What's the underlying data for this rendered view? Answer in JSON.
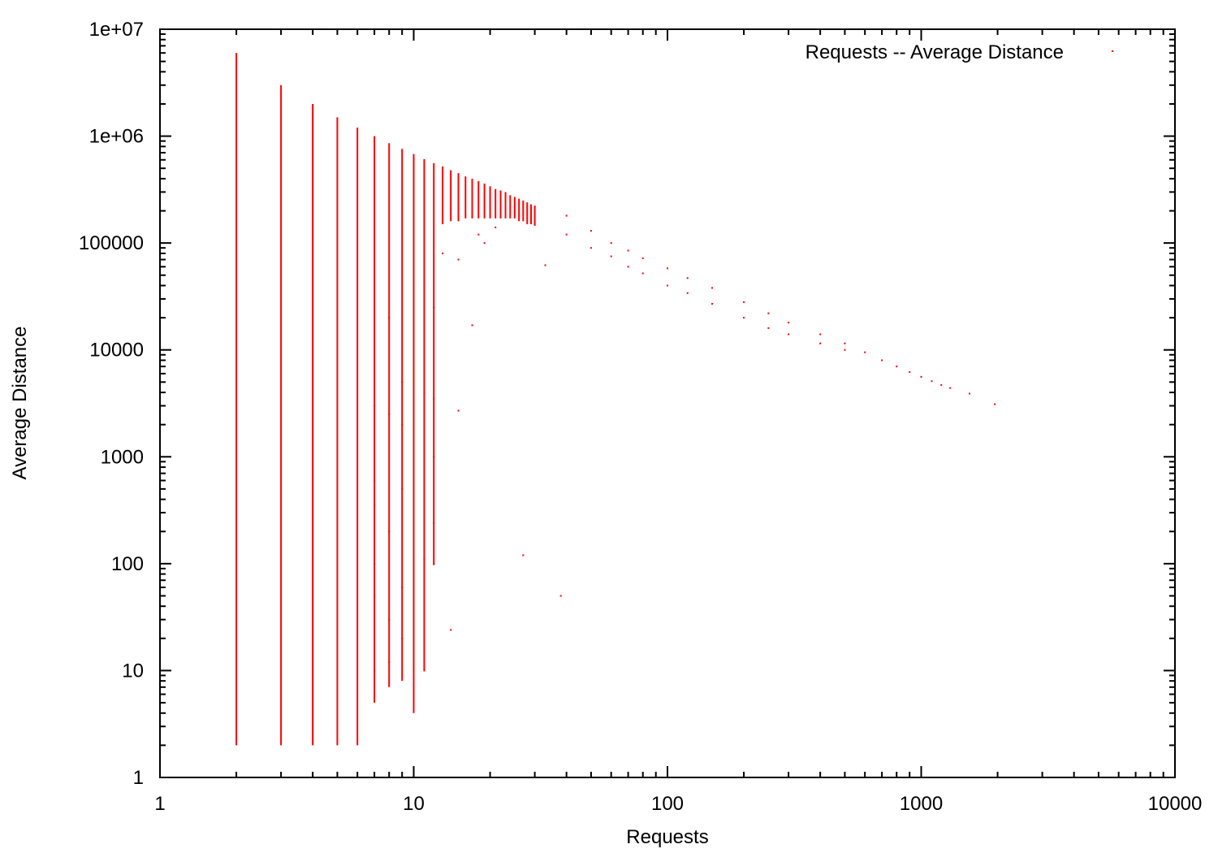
{
  "chart_data": {
    "type": "scatter",
    "title": "",
    "xlabel": "Requests",
    "ylabel": "Average Distance",
    "x_scale": "log",
    "y_scale": "log",
    "xlim": [
      1,
      10000
    ],
    "ylim": [
      1,
      10000000
    ],
    "x_ticks": [
      "1",
      "10",
      "100",
      "1000",
      "10000"
    ],
    "y_ticks": [
      "1",
      "10",
      "100",
      "1000",
      "10000",
      "100000",
      "1e+06",
      "1e+07"
    ],
    "grid": false,
    "legend_position": "top-right",
    "series": [
      {
        "name": "Requests -- Average Distance",
        "color": "#ff0000",
        "vertical_extents": [
          [
            2,
            2,
            6000000
          ],
          [
            3,
            2,
            3000000
          ],
          [
            4,
            2,
            2000000
          ],
          [
            5,
            2,
            1500000
          ],
          [
            6,
            2,
            1200000
          ],
          [
            7,
            5,
            1000000
          ],
          [
            8,
            7,
            860000
          ],
          [
            9,
            8,
            760000
          ],
          [
            10,
            4,
            680000
          ],
          [
            11,
            10,
            610000
          ],
          [
            12,
            97,
            560000
          ],
          [
            13,
            150000,
            520000
          ],
          [
            14,
            160000,
            480000
          ],
          [
            15,
            160000,
            450000
          ],
          [
            16,
            170000,
            420000
          ],
          [
            17,
            170000,
            400000
          ],
          [
            18,
            170000,
            380000
          ],
          [
            19,
            170000,
            360000
          ],
          [
            20,
            170000,
            340000
          ],
          [
            21,
            170000,
            320000
          ],
          [
            22,
            170000,
            310000
          ],
          [
            23,
            170000,
            300000
          ],
          [
            24,
            170000,
            280000
          ],
          [
            25,
            170000,
            270000
          ],
          [
            26,
            160000,
            260000
          ],
          [
            27,
            160000,
            250000
          ],
          [
            28,
            150000,
            240000
          ],
          [
            29,
            150000,
            230000
          ],
          [
            30,
            145000,
            220000
          ]
        ],
        "points": [
          [
            7,
            3000
          ],
          [
            7,
            600
          ],
          [
            7,
            350
          ],
          [
            7,
            100
          ],
          [
            7,
            50
          ],
          [
            7,
            10
          ],
          [
            8,
            20000
          ],
          [
            8,
            2500
          ],
          [
            8,
            200
          ],
          [
            8,
            30
          ],
          [
            8,
            12
          ],
          [
            9,
            5000
          ],
          [
            9,
            2000
          ],
          [
            9,
            500
          ],
          [
            9,
            60
          ],
          [
            9,
            20
          ],
          [
            10,
            30000
          ],
          [
            10,
            800
          ],
          [
            10,
            100
          ],
          [
            10,
            30
          ],
          [
            11,
            40000
          ],
          [
            11,
            4000
          ],
          [
            11,
            110
          ],
          [
            11,
            10
          ],
          [
            12,
            25000
          ],
          [
            12,
            3500
          ],
          [
            12,
            1000
          ],
          [
            12,
            240
          ],
          [
            12,
            100
          ],
          [
            13,
            80000
          ],
          [
            14,
            24
          ],
          [
            15,
            2700
          ],
          [
            15,
            70000
          ],
          [
            17,
            17000
          ],
          [
            18,
            120000
          ],
          [
            19,
            100000
          ],
          [
            21,
            140000
          ],
          [
            27,
            120
          ],
          [
            33,
            62000
          ],
          [
            38,
            50
          ],
          [
            30,
            220000
          ],
          [
            30,
            150000
          ],
          [
            40,
            180000
          ],
          [
            40,
            120000
          ],
          [
            50,
            130000
          ],
          [
            50,
            90000
          ],
          [
            60,
            100000
          ],
          [
            60,
            75000
          ],
          [
            70,
            85000
          ],
          [
            70,
            60000
          ],
          [
            80,
            72000
          ],
          [
            80,
            52000
          ],
          [
            100,
            58000
          ],
          [
            100,
            40000
          ],
          [
            120,
            47000
          ],
          [
            120,
            34000
          ],
          [
            150,
            38000
          ],
          [
            150,
            27000
          ],
          [
            200,
            28000
          ],
          [
            200,
            20000
          ],
          [
            250,
            22000
          ],
          [
            250,
            16000
          ],
          [
            300,
            18000
          ],
          [
            300,
            14000
          ],
          [
            400,
            14000
          ],
          [
            400,
            11500
          ],
          [
            500,
            11500
          ],
          [
            500,
            10000
          ],
          [
            600,
            9500
          ],
          [
            700,
            8000
          ],
          [
            800,
            7000
          ],
          [
            900,
            6200
          ],
          [
            1000,
            5600
          ],
          [
            1100,
            5100
          ],
          [
            1200,
            4700
          ],
          [
            1300,
            4400
          ],
          [
            1550,
            3900
          ],
          [
            1950,
            3100
          ]
        ]
      }
    ]
  }
}
